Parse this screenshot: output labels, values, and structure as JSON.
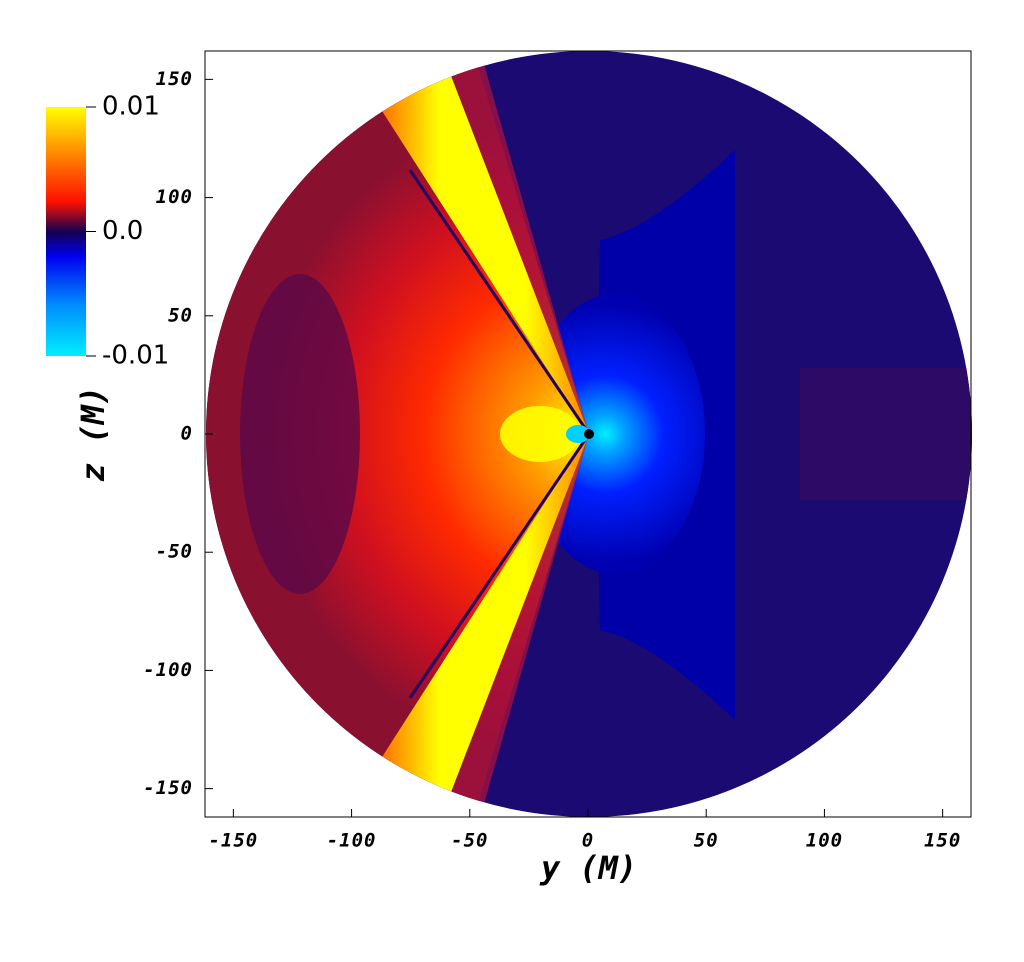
{
  "chart_data": {
    "type": "heatmap",
    "xlabel": "y (M)",
    "ylabel": "z (M)",
    "xlim": [
      -162,
      162
    ],
    "ylim": [
      -162,
      162
    ],
    "xticks": [
      -150,
      -100,
      -50,
      0,
      50,
      100,
      150
    ],
    "yticks": [
      -150,
      -100,
      -50,
      0,
      50,
      100,
      150
    ],
    "colorbar": {
      "lim": [
        -0.01,
        0.01
      ],
      "ticks": [
        0.01,
        {
          "value": 0,
          "label": "0.0"
        },
        -0.01
      ]
    }
  }
}
